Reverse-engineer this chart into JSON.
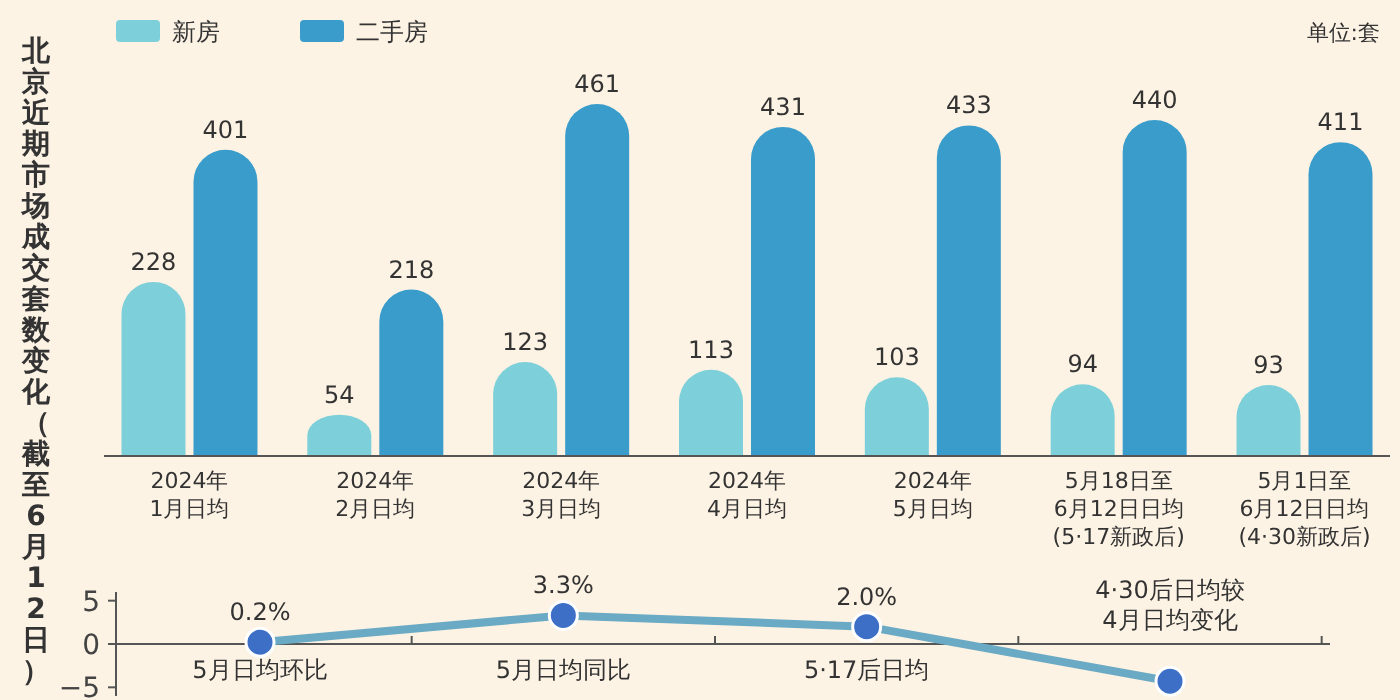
{
  "chart_data": [
    {
      "type": "bar",
      "title": "北京近期市场成交套数变化（截至6月12日）",
      "annotations": [
        "单位:套"
      ],
      "categories": [
        "2024年\n1月日均",
        "2024年\n2月日均",
        "2024年\n3月日均",
        "2024年\n4月日均",
        "2024年\n5月日均",
        "5月18日至\n6月12日日均\n(5·17新政后)",
        "5月1日至\n6月12日日均\n(4·30新政后)"
      ],
      "series": [
        {
          "name": "新房",
          "color": "#7dd0d9",
          "values": [
            228,
            54,
            123,
            113,
            103,
            94,
            93
          ]
        },
        {
          "name": "二手房",
          "color": "#3a9ccb",
          "values": [
            401,
            218,
            461,
            431,
            433,
            440,
            411
          ]
        }
      ],
      "data_labels": true,
      "legend": "top left"
    },
    {
      "type": "line",
      "categories": [
        "5月日均环比",
        "5月日均同比",
        "5·17后日均",
        "4·30后日均较4月日均变化"
      ],
      "series": [
        {
          "color": "#6aaac4",
          "values": [
            0.2,
            3.3,
            2.0,
            -4.3
          ],
          "value_labels": [
            "0.2%",
            "3.3%",
            "2.0%",
            null
          ]
        }
      ],
      "ylim": [
        -6,
        6
      ],
      "yticks": [
        5,
        0,
        -5
      ],
      "marker": "circle",
      "line_style": "solid"
    }
  ]
}
